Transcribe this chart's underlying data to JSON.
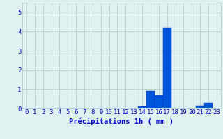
{
  "values": [
    0,
    0,
    0,
    0,
    0,
    0,
    0,
    0,
    0,
    0,
    0,
    0,
    0,
    0,
    0.1,
    0.9,
    0.7,
    4.2,
    0,
    0,
    0,
    0.15,
    0.3,
    0
  ],
  "bar_color": "#0055dd",
  "bar_edge_color": "#0033bb",
  "background_color": "#dff2f2",
  "grid_color": "#b0c8c8",
  "text_color": "#0000cc",
  "xlabel": "Précipitations 1h ( mm )",
  "ylim": [
    0,
    5.5
  ],
  "yticks": [
    0,
    1,
    2,
    3,
    4,
    5
  ],
  "tick_fontsize": 6.5,
  "label_fontsize": 7.5
}
